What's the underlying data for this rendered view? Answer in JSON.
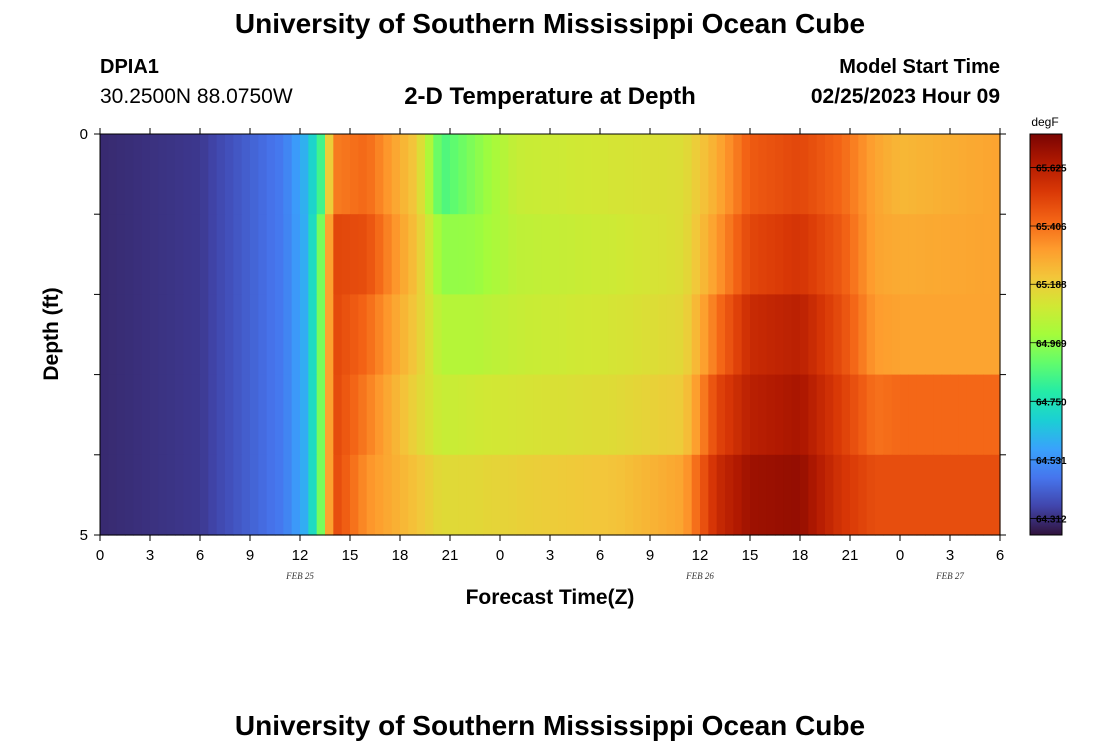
{
  "header": {
    "title": "University of Southern Mississippi Ocean Cube",
    "station": "DPIA1",
    "coords": "30.2500N  88.0750W",
    "subtitle": "2-D Temperature at Depth",
    "model_start_label": "Model Start Time",
    "model_start_value": "02/25/2023 Hour 09"
  },
  "footer": {
    "title": "University of Southern Mississippi Ocean Cube"
  },
  "chart_data": {
    "type": "heatmap",
    "title": "2-D Temperature at Depth",
    "xlabel": "Forecast Time(Z)",
    "ylabel": "Depth (ft)",
    "ylim": [
      0,
      5
    ],
    "x_tick_labels": [
      "0",
      "3",
      "6",
      "9",
      "12",
      "15",
      "18",
      "21",
      "0",
      "3",
      "6",
      "9",
      "12",
      "15",
      "18",
      "21",
      "0",
      "3",
      "6"
    ],
    "x_tick_hours": [
      0,
      3,
      6,
      9,
      12,
      15,
      18,
      21,
      24,
      27,
      30,
      33,
      36,
      39,
      42,
      45,
      48,
      51,
      54
    ],
    "date_labels": [
      {
        "text": "FEB 25",
        "hour": 12
      },
      {
        "text": "FEB 26",
        "hour": 36
      },
      {
        "text": "FEB 27",
        "hour": 51
      }
    ],
    "y_tick_labels": [
      "0",
      "5"
    ],
    "y_ticks": [
      0,
      5
    ],
    "colorbar": {
      "units": "degF",
      "min": 64.25,
      "max": 65.75,
      "labels": [
        "65.625",
        "65.406",
        "65.188",
        "64.969",
        "64.750",
        "64.531",
        "64.312"
      ],
      "colors": [
        "#30123b",
        "#4145ab",
        "#4675ed",
        "#39a2fc",
        "#1bcfd4",
        "#24eca6",
        "#61fc6c",
        "#a4fc3b",
        "#d1e834",
        "#f3c63a",
        "#fe9b2d",
        "#f36315",
        "#d93806",
        "#b11901",
        "#7a0402"
      ]
    },
    "depth_rows": [
      0,
      1,
      2,
      3,
      4,
      5
    ],
    "time_hours": [
      0,
      54
    ],
    "keyframes_hour": [
      0,
      6,
      11,
      12.5,
      13.3,
      14,
      16,
      19,
      20.5,
      22.5,
      25,
      31,
      35,
      37,
      39,
      42,
      44.5,
      46.5,
      48,
      54
    ],
    "keyframes_temp": [
      [
        64.3,
        64.33,
        64.48,
        64.63,
        64.85,
        65.38,
        65.42,
        65.2,
        64.85,
        64.95,
        65.08,
        65.12,
        65.14,
        65.28,
        65.45,
        65.5,
        65.42,
        65.3,
        65.25,
        65.3
      ],
      [
        64.3,
        64.33,
        64.48,
        64.62,
        64.95,
        65.5,
        65.48,
        65.22,
        64.97,
        64.98,
        65.06,
        65.1,
        65.14,
        65.32,
        65.5,
        65.55,
        65.45,
        65.3,
        65.28,
        65.3
      ],
      [
        64.3,
        64.33,
        64.48,
        64.62,
        64.95,
        65.5,
        65.42,
        65.2,
        65.04,
        65.04,
        65.08,
        65.12,
        65.16,
        65.4,
        65.58,
        65.62,
        65.48,
        65.32,
        65.3,
        65.3
      ],
      [
        64.3,
        64.33,
        64.48,
        64.62,
        64.95,
        65.5,
        65.38,
        65.17,
        65.08,
        65.1,
        65.12,
        65.15,
        65.2,
        65.5,
        65.62,
        65.66,
        65.52,
        65.4,
        65.42,
        65.42
      ],
      [
        64.3,
        64.33,
        64.48,
        64.62,
        64.95,
        65.5,
        65.34,
        65.22,
        65.15,
        65.16,
        65.18,
        65.22,
        65.3,
        65.58,
        65.68,
        65.7,
        65.55,
        65.48,
        65.48,
        65.48
      ]
    ]
  }
}
